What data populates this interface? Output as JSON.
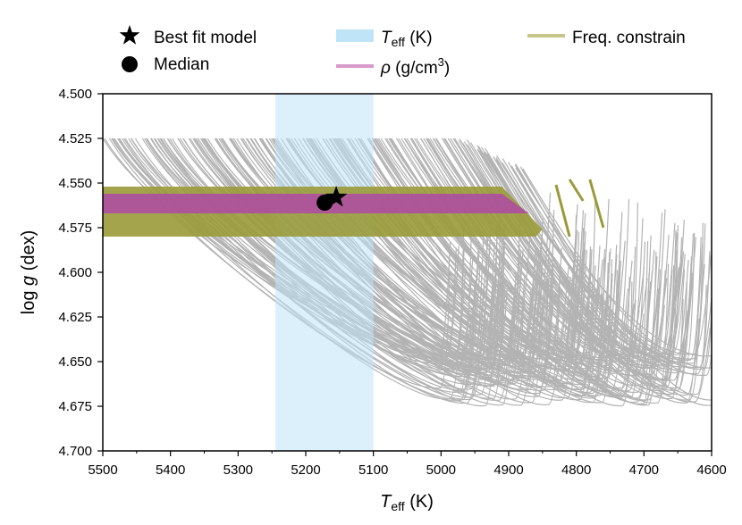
{
  "chart_data": {
    "type": "line",
    "description_series": "Stellar evolutionary tracks (gray) in log g vs Teff with observational constraints",
    "x_axis": {
      "label_main": "T",
      "label_sub": "eff",
      "label_unit": " (K)",
      "range": [
        5500,
        4600
      ],
      "ticks": [
        5500,
        5400,
        5300,
        5200,
        5100,
        5000,
        4900,
        4800,
        4700,
        4600
      ],
      "tick_labels": [
        "5500",
        "5400",
        "5300",
        "5200",
        "5100",
        "5000",
        "4900",
        "4800",
        "4700",
        "4600"
      ]
    },
    "y_axis": {
      "label_pre": "log ",
      "label_italic": "g",
      "label_post": " (dex)",
      "range": [
        4.5,
        4.7
      ],
      "ticks": [
        4.5,
        4.525,
        4.55,
        4.575,
        4.6,
        4.625,
        4.65,
        4.675,
        4.7
      ],
      "tick_labels": [
        "4.500",
        "4.525",
        "4.550",
        "4.575",
        "4.600",
        "4.625",
        "4.650",
        "4.675",
        "4.700"
      ]
    },
    "teff_band": {
      "min": 5100,
      "max": 5245
    },
    "freq_band": {
      "y_min": 4.552,
      "y_max": 4.58,
      "x_start": 5500,
      "x_end": 4850
    },
    "rho_band": {
      "y_min": 4.556,
      "y_max": 4.567,
      "x_start": 5500,
      "x_end": 4870
    },
    "best_fit": {
      "teff": 5155,
      "logg": 4.558
    },
    "median": {
      "teff": 5172,
      "logg": 4.561
    },
    "legend": {
      "best_fit": "Best fit model",
      "median": "Median",
      "teff_main": "T",
      "teff_sub": "eff",
      "teff_unit": " (K)",
      "rho_symbol": "ρ",
      "rho_unit": " (g/cm",
      "rho_exp": "3",
      "rho_close": ")",
      "freq": "Freq. constrain"
    },
    "colors": {
      "tracks": "#b3b3b3",
      "teff_band": "#bfe3f7",
      "freq": "#9a9a3a",
      "freq_legend": "#c8c48c",
      "rho": "#b04aa6",
      "rho_legend": "#d89acb"
    }
  }
}
